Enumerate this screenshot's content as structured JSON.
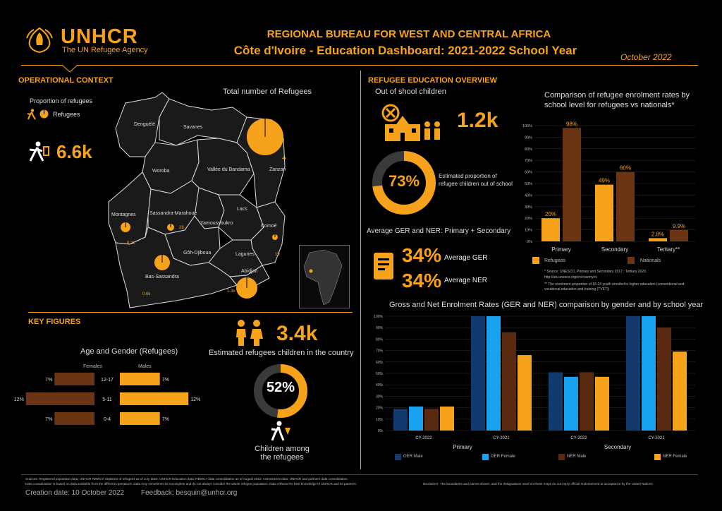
{
  "brand": {
    "name": "UNHCR",
    "tagline": "The UN Refugee Agency"
  },
  "header": {
    "line1": "REGIONAL BUREAU FOR WEST AND CENTRAL AFRICA",
    "line2": "Côte d'Ivoire - Education Dashboard: 2021-2022 School Year",
    "date": "October 2022"
  },
  "colors": {
    "accent": "#f7a21b",
    "brown": "#6b3413",
    "navy": "#123a6e",
    "blue": "#18a2f0",
    "dark_brown": "#5a2a10",
    "map_fill": "#1c1c1c"
  },
  "operational": {
    "title": "OPERATIONAL CONTEXT",
    "prop_label": "Proportion of refugees",
    "legend_refugees": "Refugees",
    "total_value": "6.6k",
    "map_title": "Total number of Refugees",
    "regions": [
      "Denguélé",
      "Savanes",
      "Woroba",
      "Vallée du Bandama",
      "Zanzan",
      "Montagnes",
      "Sassandra-Marahoué",
      "Yamoussoukro",
      "Lacs",
      "Comoé",
      "Gôh-Djiboua",
      "Lagunes",
      "Bas-Sassandra",
      "Abidjan"
    ],
    "counts": {
      "zanzan": "4k",
      "montagnes": "0.2k",
      "sassandra": "28",
      "comoe": "19",
      "bas_sassandra": "0.6k",
      "abidjan": "1.3k"
    }
  },
  "key_figures": {
    "title": "KEY FIGURES",
    "age_title": "Age and Gender (Refugees)",
    "females": "Females",
    "males": "Males",
    "age_rows": [
      {
        "age": "12-17",
        "female": "7%",
        "male": "7%",
        "f": 7,
        "m": 7
      },
      {
        "age": "5-11",
        "female": "12%",
        "male": "12%",
        "f": 12,
        "m": 12
      },
      {
        "age": "0-4",
        "female": "7%",
        "male": "7%",
        "f": 7,
        "m": 7
      }
    ],
    "children_value": "3.4k",
    "children_label": "Estimated refugees children in the country",
    "children_pct": "52%",
    "children_pct_value": 52,
    "children_among": "Children among the refugees"
  },
  "education": {
    "title": "REFUGEE EDUCATION OVERVIEW",
    "oos_label": "Out of shool children",
    "oos_value": "1.2k",
    "oos_pct": "73%",
    "oos_pct_value": 73,
    "oos_pct_label": "Estimated proportion of refugee children out of school",
    "avg_title": "Average GER and NER: Primary + Secondary",
    "avg_ger": "34%",
    "avg_ger_label": "Average GER",
    "avg_ner": "34%",
    "avg_ner_label": "Average NER"
  },
  "footer": {
    "sources": "Sources: Registered population data: UNHCR RBWCA Statistics of refugees as of July 2022. UNHCR Education data: RBWCA data consolidation as of August 2022. Assessment data: UNHCR and partners data consolidation.",
    "note": "Data consolidation is based on data available from the different operations. Data may sometimes be incomplete and do not always consider the whole refugee population. Data reflects the best knowledge of UNHCR and its partners.",
    "disclaimer": "Disclaimer: The boundaries and names shown, and the designations used on these maps do not imply official endorsement or acceptance by the United Nations.",
    "creation": "Creation date: 10 October 2022",
    "feedback": "Feedback: besquin@unhcr.org"
  },
  "chart_data": [
    {
      "type": "bar",
      "title": "Comparison of refugee enrolment rates by school level for refugees vs nationals*",
      "categories": [
        "Primary",
        "Secondary",
        "Tertiary**"
      ],
      "series": [
        {
          "name": "Refugees",
          "values": [
            20,
            49,
            2.8
          ],
          "labels": [
            "20%",
            "49%",
            "2.8%"
          ]
        },
        {
          "name": "Nationals",
          "values": [
            98,
            60,
            9.9
          ],
          "labels": [
            "98%",
            "60%",
            "9.9%"
          ]
        }
      ],
      "yticks": [
        "0%",
        "10%",
        "20%",
        "30%",
        "40%",
        "50%",
        "60%",
        "70%",
        "80%",
        "90%",
        "100%"
      ],
      "ylim": [
        0,
        100
      ],
      "note1": "* Source: UNESCO, Primary and Secondary 2017 ; Tertiary 2020.",
      "note2": "http://uis.unesco.org/en/country/ci",
      "note3": "** The enrolment proportion of 18-24 youth enrolled in higher education (conventional and vocational education and training (TVET))"
    },
    {
      "type": "bar",
      "title": "Gross and Net Enrolment Rates (GER and NER) comparison by gender and by school year",
      "groups": [
        {
          "name": "Primary",
          "categories": [
            "CY-2022",
            "CY-2021"
          ]
        },
        {
          "name": "Secondary",
          "categories": [
            "CY-2022",
            "CY-2021"
          ]
        }
      ],
      "series": [
        {
          "name": "GER Male",
          "values": [
            19,
            100,
            51,
            100
          ]
        },
        {
          "name": "GER Female",
          "values": [
            21,
            100,
            47,
            100
          ]
        },
        {
          "name": "NER Male",
          "values": [
            19,
            86,
            51,
            90
          ]
        },
        {
          "name": "NER Female",
          "values": [
            21,
            66,
            47,
            69
          ]
        }
      ],
      "yticks": [
        "0%",
        "10%",
        "20%",
        "30%",
        "40%",
        "50%",
        "60%",
        "70%",
        "80%",
        "90%",
        "100%"
      ],
      "ylim": [
        0,
        100
      ]
    }
  ]
}
